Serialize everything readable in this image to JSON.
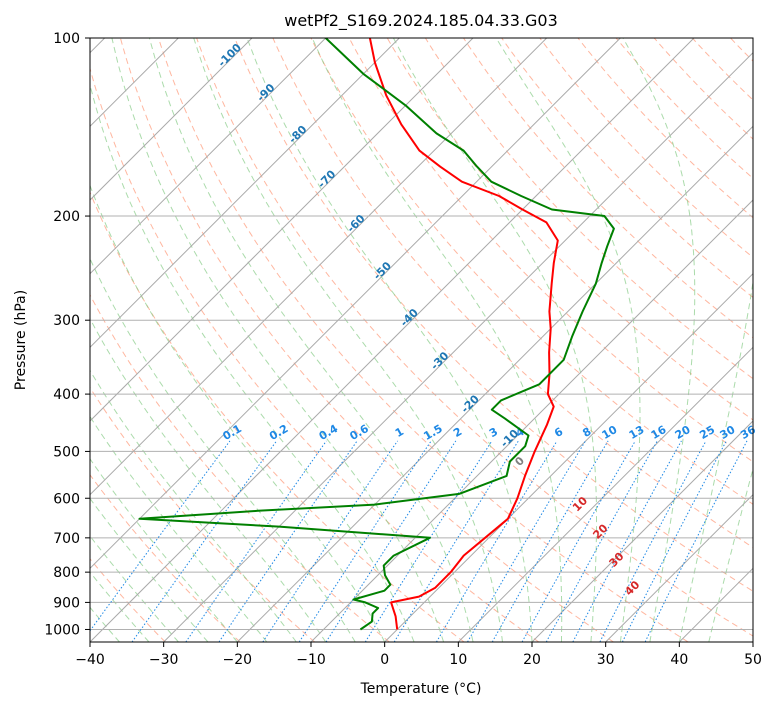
{
  "chart_data": {
    "type": "line",
    "title": "wetPf2_S169.2024.185.04.33.G03",
    "xlabel": "Temperature (°C)",
    "ylabel": "Pressure (hPa)",
    "xlim": [
      -40,
      50
    ],
    "ylim": [
      1050,
      100
    ],
    "y_scale": "log",
    "grid": true,
    "x_ticks": [
      -40,
      -30,
      -20,
      -10,
      0,
      10,
      20,
      30,
      40,
      50
    ],
    "y_ticks": [
      100,
      200,
      300,
      400,
      500,
      600,
      700,
      800,
      900,
      1000
    ],
    "colors": {
      "temperature": "#ff0000",
      "dewpoint": "#008000",
      "isotherm": "#aaaaaa",
      "dry_adiabat": "#ff9f80",
      "moist_adiabat": "#88cc88",
      "mixing_ratio": "#1e88e5",
      "isotherm_label": "#1f77b4",
      "theta_e_label": "#d62728",
      "gray_label": "#808080"
    },
    "series": [
      {
        "key": "temperature",
        "values": [
          [
            0,
            1000
          ],
          [
            -2,
            950
          ],
          [
            -4.5,
            900
          ],
          [
            -1.5,
            880
          ],
          [
            -0.5,
            850
          ],
          [
            -0.5,
            800
          ],
          [
            -1,
            750
          ],
          [
            -0.5,
            700
          ],
          [
            0,
            650
          ],
          [
            -1.5,
            600
          ],
          [
            -3.5,
            550
          ],
          [
            -5.5,
            500
          ],
          [
            -7.5,
            450
          ],
          [
            -9,
            420
          ],
          [
            -11.5,
            400
          ],
          [
            -14,
            370
          ],
          [
            -17,
            340
          ],
          [
            -20,
            310
          ],
          [
            -22.5,
            290
          ],
          [
            -26,
            260
          ],
          [
            -28.5,
            240
          ],
          [
            -31,
            220
          ],
          [
            -35,
            205
          ],
          [
            -40,
            195
          ],
          [
            -45,
            185
          ],
          [
            -52,
            175
          ],
          [
            -57,
            165
          ],
          [
            -62,
            155
          ],
          [
            -68,
            140
          ],
          [
            -74,
            125
          ],
          [
            -80,
            110
          ],
          [
            -84,
            100
          ]
        ]
      },
      {
        "key": "dewpoint",
        "values": [
          [
            -5,
            1000
          ],
          [
            -4.5,
            970
          ],
          [
            -5.5,
            940
          ],
          [
            -5.5,
            920
          ],
          [
            -8,
            900
          ],
          [
            -10,
            890
          ],
          [
            -7,
            860
          ],
          [
            -7,
            840
          ],
          [
            -9,
            810
          ],
          [
            -10.5,
            780
          ],
          [
            -10.5,
            750
          ],
          [
            -8,
            700
          ],
          [
            -30,
            670
          ],
          [
            -50,
            650
          ],
          [
            -35,
            630
          ],
          [
            -20,
            615
          ],
          [
            -10,
            590
          ],
          [
            -6,
            550
          ],
          [
            -7.5,
            520
          ],
          [
            -7.5,
            490
          ],
          [
            -8.5,
            470
          ],
          [
            -14,
            440
          ],
          [
            -17,
            425
          ],
          [
            -17,
            410
          ],
          [
            -14,
            385
          ],
          [
            -14,
            350
          ],
          [
            -16,
            320
          ],
          [
            -18,
            290
          ],
          [
            -20,
            260
          ],
          [
            -22,
            240
          ],
          [
            -23.5,
            225
          ],
          [
            -25,
            210
          ],
          [
            -28,
            200
          ],
          [
            -36,
            195
          ],
          [
            -42,
            185
          ],
          [
            -48,
            175
          ],
          [
            -52,
            165
          ],
          [
            -56,
            155
          ],
          [
            -62,
            145
          ],
          [
            -70,
            130
          ],
          [
            -80,
            115
          ],
          [
            -90,
            100
          ]
        ]
      }
    ],
    "isotherm_labels": [
      "-100",
      "-90",
      "-80",
      "-70",
      "-60",
      "-50",
      "-40",
      "-30",
      "-20",
      "-10"
    ],
    "mixing_ratio_labels": [
      "0.1",
      "0.2",
      "0.4",
      "0.6",
      "1",
      "1.5",
      "2",
      "3",
      "4",
      "6",
      "8",
      "10",
      "13",
      "16",
      "20",
      "25",
      "30",
      "36"
    ],
    "theta_e_labels": [
      "0",
      "10",
      "20",
      "30",
      "40"
    ]
  }
}
